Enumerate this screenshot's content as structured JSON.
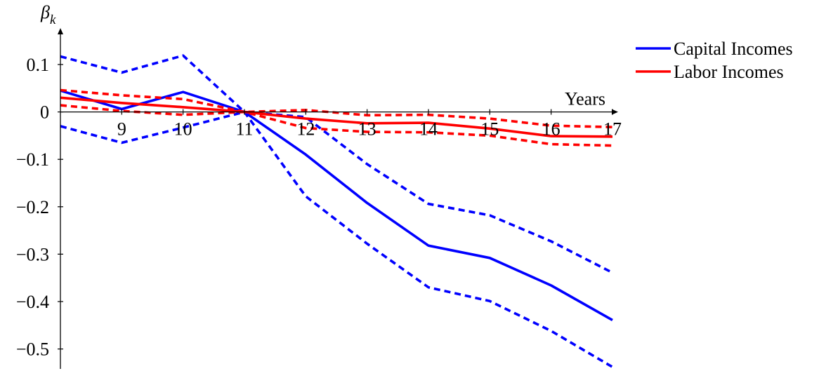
{
  "chart_data": {
    "type": "line",
    "xlabel": "Years",
    "ylabel": "β",
    "ylabel_subscript": "k",
    "x": [
      8,
      9,
      10,
      11,
      12,
      13,
      14,
      15,
      16,
      17
    ],
    "x_tick_labels": [
      "9",
      "10",
      "11",
      "12",
      "13",
      "14",
      "15",
      "16",
      "17"
    ],
    "x_ticks": [
      9,
      10,
      11,
      12,
      13,
      14,
      15,
      16,
      17
    ],
    "y_ticks": [
      0.1,
      0,
      -0.1,
      -0.2,
      -0.3,
      -0.4,
      -0.5
    ],
    "y_tick_labels": [
      "0.1",
      "0",
      "−0.1",
      "−0.2",
      "−0.3",
      "−0.4",
      "−0.5"
    ],
    "xlim": [
      8,
      17
    ],
    "ylim": [
      -0.55,
      0.15
    ],
    "grid": false,
    "legend_position": "right",
    "series": [
      {
        "name": "Capital Incomes",
        "color": "#0000ff",
        "style": "solid",
        "values": [
          0.045,
          0.006,
          0.042,
          0.0,
          -0.09,
          -0.192,
          -0.282,
          -0.308,
          -0.366,
          -0.439
        ],
        "ci_upper": [
          0.117,
          0.083,
          0.119,
          0.0,
          -0.011,
          -0.11,
          -0.194,
          -0.218,
          -0.273,
          -0.339
        ],
        "ci_lower": [
          -0.03,
          -0.065,
          -0.033,
          0.0,
          -0.178,
          -0.278,
          -0.37,
          -0.399,
          -0.462,
          -0.538
        ]
      },
      {
        "name": "Labor Incomes",
        "color": "#ff0000",
        "style": "solid",
        "values": [
          0.03,
          0.019,
          0.01,
          0.0,
          -0.014,
          -0.024,
          -0.023,
          -0.035,
          -0.051,
          -0.052
        ],
        "ci_upper": [
          0.046,
          0.035,
          0.027,
          0.0,
          0.004,
          -0.007,
          -0.006,
          -0.014,
          -0.029,
          -0.032
        ],
        "ci_lower": [
          0.014,
          0.002,
          -0.006,
          0.0,
          -0.034,
          -0.042,
          -0.043,
          -0.05,
          -0.068,
          -0.071
        ]
      }
    ]
  }
}
